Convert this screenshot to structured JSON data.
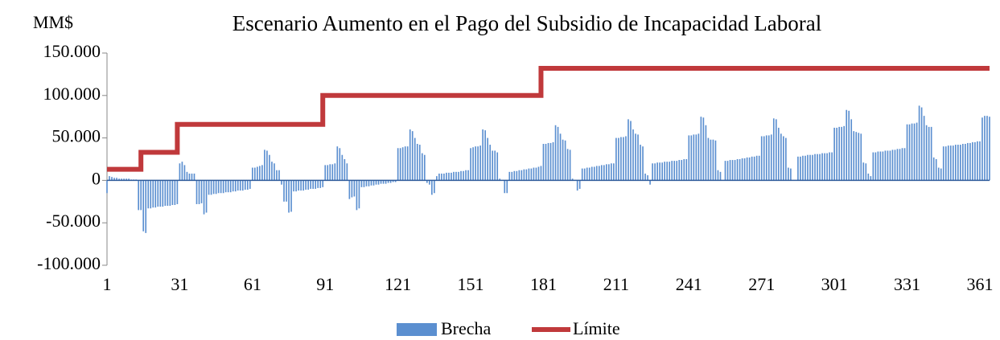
{
  "chart_data": {
    "type": "bar",
    "title": "Escenario Aumento en el Pago del Subsidio de Incapacidad Laboral",
    "y_label": "MM$",
    "x": [
      1,
      2,
      3,
      4,
      5,
      6,
      7,
      8,
      9,
      10,
      11,
      12,
      13,
      14,
      15,
      16,
      17,
      18,
      19,
      20,
      21,
      22,
      23,
      24,
      25,
      26,
      27,
      28,
      29,
      30,
      31,
      32,
      33,
      34,
      35,
      36,
      37,
      38,
      39,
      40,
      41,
      42,
      43,
      44,
      45,
      46,
      47,
      48,
      49,
      50,
      51,
      52,
      53,
      54,
      55,
      56,
      57,
      58,
      59,
      60,
      61,
      62,
      63,
      64,
      65,
      66,
      67,
      68,
      69,
      70,
      71,
      72,
      73,
      74,
      75,
      76,
      77,
      78,
      79,
      80,
      81,
      82,
      83,
      84,
      85,
      86,
      87,
      88,
      89,
      90,
      91,
      92,
      93,
      94,
      95,
      96,
      97,
      98,
      99,
      100,
      101,
      102,
      103,
      104,
      105,
      106,
      107,
      108,
      109,
      110,
      111,
      112,
      113,
      114,
      115,
      116,
      117,
      118,
      119,
      120,
      121,
      122,
      123,
      124,
      125,
      126,
      127,
      128,
      129,
      130,
      131,
      132,
      133,
      134,
      135,
      136,
      137,
      138,
      139,
      140,
      141,
      142,
      143,
      144,
      145,
      146,
      147,
      148,
      149,
      150,
      151,
      152,
      153,
      154,
      155,
      156,
      157,
      158,
      159,
      160,
      161,
      162,
      163,
      164,
      165,
      166,
      167,
      168,
      169,
      170,
      171,
      172,
      173,
      174,
      175,
      176,
      177,
      178,
      179,
      180,
      181,
      182,
      183,
      184,
      185,
      186,
      187,
      188,
      189,
      190,
      191,
      192,
      193,
      194,
      195,
      196,
      197,
      198,
      199,
      200,
      201,
      202,
      203,
      204,
      205,
      206,
      207,
      208,
      209,
      210,
      211,
      212,
      213,
      214,
      215,
      216,
      217,
      218,
      219,
      220,
      221,
      222,
      223,
      224,
      225,
      226,
      227,
      228,
      229,
      230,
      231,
      232,
      233,
      234,
      235,
      236,
      237,
      238,
      239,
      240,
      241,
      242,
      243,
      244,
      245,
      246,
      247,
      248,
      249,
      250,
      251,
      252,
      253,
      254,
      255,
      256,
      257,
      258,
      259,
      260,
      261,
      262,
      263,
      264,
      265,
      266,
      267,
      268,
      269,
      270,
      271,
      272,
      273,
      274,
      275,
      276,
      277,
      278,
      279,
      280,
      281,
      282,
      283,
      284,
      285,
      286,
      287,
      288,
      289,
      290,
      291,
      292,
      293,
      294,
      295,
      296,
      297,
      298,
      299,
      300,
      301,
      302,
      303,
      304,
      305,
      306,
      307,
      308,
      309,
      310,
      311,
      312,
      313,
      314,
      315,
      316,
      317,
      318,
      319,
      320,
      321,
      322,
      323,
      324,
      325,
      326,
      327,
      328,
      329,
      330,
      331,
      332,
      333,
      334,
      335,
      336,
      337,
      338,
      339,
      340,
      341,
      342,
      343,
      344,
      345,
      346,
      347,
      348,
      349,
      350,
      351,
      352,
      353,
      354,
      355,
      356,
      357,
      358,
      359,
      360,
      361,
      362,
      363,
      364,
      365
    ],
    "series": [
      {
        "name": "Brecha",
        "type": "bar",
        "color": "#5b8fd0",
        "values": [
          -15000,
          5000,
          4000,
          3000,
          3000,
          2000,
          2000,
          2000,
          2000,
          2000,
          1000,
          1000,
          1000,
          -35000,
          -35000,
          -60000,
          -62000,
          -33000,
          -33000,
          -32000,
          -32000,
          -31000,
          -31000,
          -31000,
          -30000,
          -30000,
          -30000,
          -29000,
          -29000,
          -28000,
          20000,
          22000,
          18000,
          10000,
          8000,
          8000,
          8000,
          -28000,
          -28000,
          -27000,
          -40000,
          -38000,
          -17000,
          -17000,
          -16000,
          -16000,
          -15000,
          -15000,
          -15000,
          -14000,
          -14000,
          -14000,
          -13000,
          -13000,
          -12000,
          -12000,
          -12000,
          -11000,
          -11000,
          -10000,
          15000,
          15000,
          16000,
          17000,
          18000,
          36000,
          35000,
          30000,
          22000,
          20000,
          12000,
          12000,
          -5000,
          -25000,
          -25000,
          -38000,
          -37000,
          -13000,
          -13000,
          -12000,
          -12000,
          -12000,
          -11000,
          -11000,
          -10000,
          -10000,
          -10000,
          -9000,
          -9000,
          -8000,
          18000,
          18000,
          19000,
          19000,
          20000,
          40000,
          38000,
          30000,
          25000,
          20000,
          -22000,
          -20000,
          -19000,
          -35000,
          -33000,
          -8000,
          -8000,
          -7000,
          -7000,
          -6000,
          -6000,
          -5000,
          -5000,
          -4000,
          -4000,
          -4000,
          -3000,
          -3000,
          -2000,
          -2000,
          38000,
          38000,
          39000,
          40000,
          40000,
          60000,
          58000,
          50000,
          43000,
          42000,
          32000,
          30000,
          -3000,
          -5000,
          -17000,
          -15000,
          5000,
          8000,
          8000,
          8000,
          9000,
          9000,
          9000,
          10000,
          10000,
          10000,
          11000,
          11000,
          12000,
          12000,
          38000,
          39000,
          40000,
          40000,
          41000,
          60000,
          59000,
          50000,
          42000,
          35000,
          35000,
          33000,
          2000,
          0,
          -15000,
          -15000,
          10000,
          10000,
          11000,
          11000,
          12000,
          12000,
          13000,
          13000,
          14000,
          14000,
          15000,
          15000,
          16000,
          17000,
          43000,
          43000,
          44000,
          44000,
          45000,
          65000,
          63000,
          55000,
          48000,
          47000,
          37000,
          36000,
          2000,
          0,
          -12000,
          -10000,
          14000,
          14000,
          15000,
          15000,
          16000,
          16000,
          17000,
          17000,
          18000,
          18000,
          19000,
          19000,
          20000,
          20000,
          50000,
          50000,
          51000,
          51000,
          52000,
          72000,
          70000,
          60000,
          55000,
          54000,
          42000,
          40000,
          8000,
          6000,
          -5000,
          20000,
          20000,
          21000,
          21000,
          21000,
          22000,
          22000,
          22000,
          23000,
          23000,
          23000,
          24000,
          24000,
          25000,
          25000,
          53000,
          53000,
          54000,
          54000,
          55000,
          75000,
          74000,
          65000,
          50000,
          48000,
          48000,
          47000,
          12000,
          10000,
          0,
          23000,
          23000,
          24000,
          24000,
          24000,
          25000,
          25000,
          26000,
          26000,
          27000,
          27000,
          28000,
          28000,
          29000,
          29000,
          52000,
          52000,
          53000,
          53000,
          54000,
          73000,
          72000,
          62000,
          55000,
          52000,
          50000,
          15000,
          14000,
          0,
          0,
          28000,
          28000,
          29000,
          29000,
          30000,
          30000,
          30000,
          31000,
          31000,
          31000,
          32000,
          32000,
          32000,
          33000,
          33000,
          62000,
          62000,
          63000,
          63000,
          64000,
          83000,
          82000,
          72000,
          58000,
          57000,
          56000,
          55000,
          21000,
          20000,
          8000,
          5000,
          33000,
          33000,
          34000,
          34000,
          34000,
          35000,
          35000,
          35000,
          36000,
          36000,
          37000,
          37000,
          38000,
          38000,
          66000,
          66000,
          67000,
          67000,
          68000,
          88000,
          86000,
          76000,
          65000,
          63000,
          63000,
          27000,
          25000,
          15000,
          14000,
          40000,
          40000,
          41000,
          41000,
          41000,
          42000,
          42000,
          42000,
          43000,
          43000,
          44000,
          44000,
          45000,
          45000,
          46000,
          46000,
          74000,
          76000,
          76000,
          75000
        ]
      },
      {
        "name": "Límite",
        "type": "line",
        "color": "#c0393b",
        "x": [
          1,
          15,
          15,
          30,
          30,
          90,
          90,
          180,
          180,
          365
        ],
        "values": [
          13000,
          13000,
          33000,
          33000,
          66000,
          66000,
          100000,
          100000,
          132000,
          132000
        ]
      }
    ],
    "xlim": [
      1,
      365
    ],
    "xticks": [
      1,
      31,
      61,
      91,
      121,
      151,
      181,
      211,
      241,
      271,
      301,
      331,
      361
    ],
    "ylim": [
      -100000,
      150000
    ],
    "yticks": [
      {
        "value": -100000,
        "label": "-100.000"
      },
      {
        "value": -50000,
        "label": "-50.000"
      },
      0,
      {
        "value": 50000,
        "label": "50.000"
      },
      {
        "value": 100000,
        "label": "100.000"
      },
      {
        "value": 150000,
        "label": "150.000"
      }
    ],
    "legend": "bottom"
  }
}
